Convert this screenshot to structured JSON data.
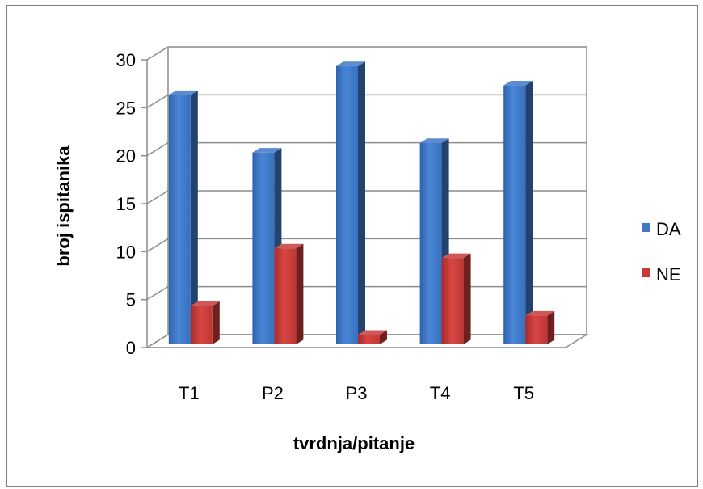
{
  "chart_data": {
    "type": "bar",
    "style": "3d-clustered-column",
    "categories": [
      "T1",
      "P2",
      "P3",
      "T4",
      "T5"
    ],
    "series": [
      {
        "name": "DA",
        "values": [
          26,
          20,
          29,
          21,
          27
        ],
        "color": "#3f78c8"
      },
      {
        "name": "NE",
        "values": [
          4,
          10,
          1,
          9,
          3
        ],
        "color": "#c83a38"
      }
    ],
    "title": "",
    "xlabel": "tvrdnja/pitanje",
    "ylabel": "broj ispitanika",
    "ylim": [
      0,
      30
    ],
    "yticks": [
      0,
      5,
      10,
      15,
      20,
      25,
      30
    ],
    "grid": true,
    "legend_position": "right"
  }
}
